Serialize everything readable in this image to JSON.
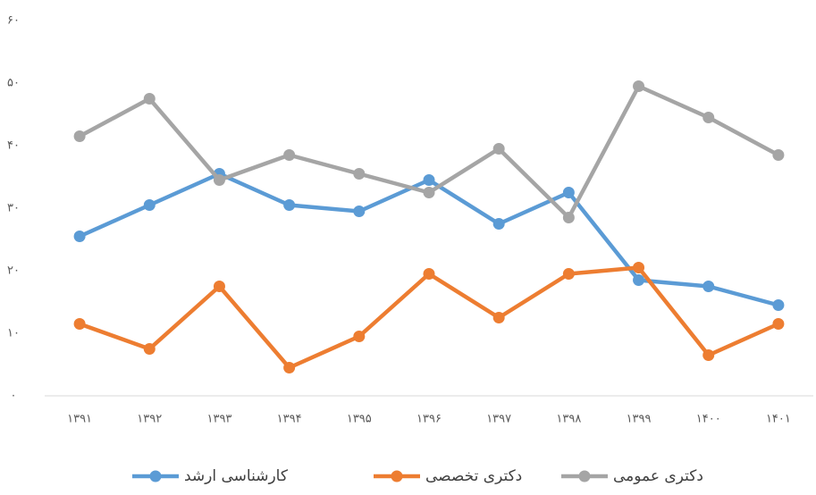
{
  "chart_data": {
    "type": "line",
    "categories": [
      "۱۳۹۱",
      "۱۳۹۲",
      "۱۳۹۳",
      "۱۳۹۴",
      "۱۳۹۵",
      "۱۳۹۶",
      "۱۳۹۷",
      "۱۳۹۸",
      "۱۳۹۹",
      "۱۴۰۰",
      "۱۴۰۱"
    ],
    "series": [
      {
        "name": "کارشناسی ارشد",
        "color": "#5b9bd5",
        "values": [
          25.5,
          30.5,
          35.5,
          30.5,
          29.5,
          34.5,
          27.5,
          32.5,
          18.5,
          17.5,
          14.5
        ]
      },
      {
        "name": "دکتری تخصصی",
        "color": "#ed7d31",
        "values": [
          11.5,
          7.5,
          17.5,
          4.5,
          9.5,
          19.5,
          12.5,
          19.5,
          20.5,
          6.5,
          11.5
        ]
      },
      {
        "name": "دکتری عمومی",
        "color": "#a5a5a5",
        "values": [
          41.5,
          47.5,
          34.5,
          38.5,
          35.5,
          32.5,
          39.5,
          28.5,
          49.5,
          44.5,
          38.5
        ]
      }
    ],
    "ylim": [
      0,
      60
    ],
    "yticks": [
      {
        "value": 0,
        "label": "۰"
      },
      {
        "value": 10,
        "label": "۱۰"
      },
      {
        "value": 20,
        "label": "۲۰"
      },
      {
        "value": 30,
        "label": "۳۰"
      },
      {
        "value": 40,
        "label": "۴۰"
      },
      {
        "value": 50,
        "label": "۵۰"
      },
      {
        "value": 60,
        "label": "۶۰"
      }
    ],
    "grid": false
  }
}
